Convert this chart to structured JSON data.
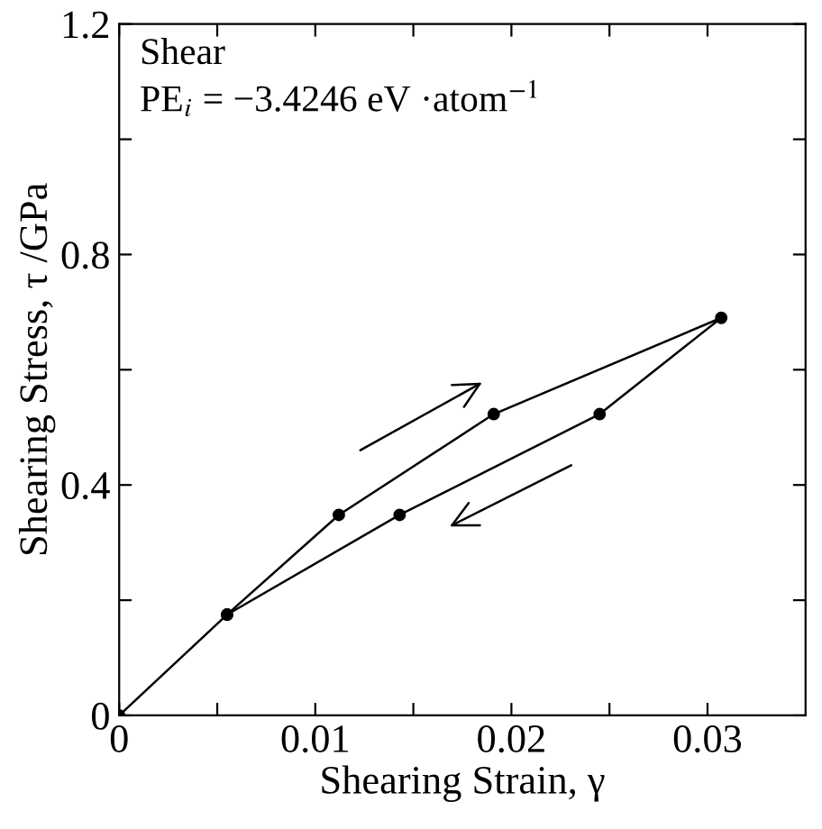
{
  "chart_data": {
    "type": "line",
    "xlabel": "Shearing Strain, γ",
    "ylabel": "Shearing Stress, τ /GPa",
    "annotations": [
      "Shear",
      "PE$_{i}$ = −3.4246 eV ·atom$^{−1}$"
    ],
    "series": [
      {
        "color": "#000000",
        "x": [
          0,
          0.0055,
          0.0112,
          0.0191,
          0.0307,
          0.0245,
          0.0143,
          0.0055
        ],
        "values": [
          0,
          0.175,
          0.348,
          0.523,
          0.69,
          0.523,
          0.348,
          0.175
        ]
      }
    ],
    "marker": "circle",
    "line_style": "solid",
    "grid": false,
    "legend": false,
    "xlim": [
      0,
      0.035
    ],
    "ylim": [
      0,
      1.2
    ],
    "xticks": [
      0,
      {
        "value": 0.005,
        "label": null
      },
      0.01,
      {
        "value": 0.015,
        "label": null
      },
      0.02,
      {
        "value": 0.025,
        "label": null
      },
      0.03
    ],
    "yticks": [
      0,
      {
        "value": 0.2,
        "label": null
      },
      0.4,
      {
        "value": 0.6,
        "label": null
      },
      0.8,
      {
        "value": 1.0,
        "label": null
      },
      1.2
    ]
  }
}
